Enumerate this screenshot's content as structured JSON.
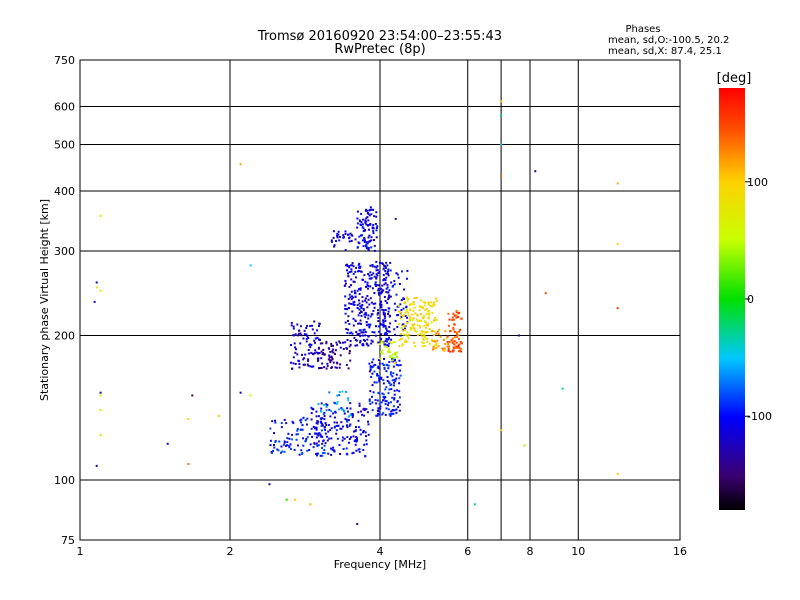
{
  "chart_data": {
    "type": "scatter",
    "title": "Tromsø 20160920 23:54:00–23:55:43",
    "subtitle": "RwPretec (8p)",
    "xlabel": "Frequency [MHz]",
    "ylabel": "Stationary phase Virtual Height [km]",
    "x_scale": "log",
    "y_scale": "log",
    "xlim": [
      1,
      16
    ],
    "ylim": [
      75,
      750
    ],
    "x_ticks": [
      1,
      2,
      4,
      6,
      8,
      10,
      16
    ],
    "y_ticks": [
      75,
      100,
      200,
      300,
      400,
      500,
      600,
      750
    ],
    "x_grid": [
      2,
      4,
      6,
      7,
      8,
      10
    ],
    "y_grid": [
      100,
      200,
      300,
      400,
      500,
      600
    ],
    "grid": true,
    "legend": {
      "title": "Phases",
      "line1": "mean, sd,O:-100.5, 20.2",
      "line2": "mean, sd,X:  87.4, 25.1",
      "placement": "top-right"
    },
    "colorbar": {
      "label": "[deg]",
      "min": -180,
      "max": 180,
      "ticks": [
        100,
        0,
        -100
      ],
      "placement": "right"
    },
    "clusters": [
      {
        "f_min": 2.65,
        "f_max": 3.05,
        "h_min": 170,
        "h_max": 215,
        "count": 90,
        "phase": -115
      },
      {
        "f_min": 3.0,
        "f_max": 3.5,
        "h_min": 170,
        "h_max": 195,
        "count": 70,
        "phase": -135
      },
      {
        "f_min": 3.4,
        "f_max": 4.2,
        "h_min": 190,
        "h_max": 285,
        "count": 320,
        "phase": -112
      },
      {
        "f_min": 3.6,
        "f_max": 3.95,
        "h_min": 300,
        "h_max": 370,
        "count": 90,
        "phase": -110
      },
      {
        "f_min": 3.2,
        "f_max": 3.6,
        "h_min": 300,
        "h_max": 330,
        "count": 30,
        "phase": -115
      },
      {
        "f_min": 4.0,
        "f_max": 4.55,
        "h_min": 195,
        "h_max": 275,
        "count": 70,
        "phase": -108
      },
      {
        "f_min": 2.4,
        "f_max": 3.1,
        "h_min": 112,
        "h_max": 135,
        "count": 100,
        "phase": -95
      },
      {
        "f_min": 2.9,
        "f_max": 3.8,
        "h_min": 112,
        "h_max": 145,
        "count": 170,
        "phase": -110
      },
      {
        "f_min": 3.8,
        "f_max": 4.4,
        "h_min": 135,
        "h_max": 180,
        "count": 150,
        "phase": -100
      },
      {
        "f_min": 3.0,
        "f_max": 3.5,
        "h_min": 135,
        "h_max": 155,
        "count": 25,
        "phase": -60
      },
      {
        "f_min": 4.0,
        "f_max": 4.35,
        "h_min": 175,
        "h_max": 195,
        "count": 30,
        "phase": 55
      },
      {
        "f_min": 4.35,
        "f_max": 5.2,
        "h_min": 190,
        "h_max": 240,
        "count": 160,
        "phase": 88
      },
      {
        "f_min": 5.05,
        "f_max": 5.5,
        "h_min": 185,
        "h_max": 210,
        "count": 25,
        "phase": 120
      },
      {
        "f_min": 5.45,
        "f_max": 5.85,
        "h_min": 185,
        "h_max": 225,
        "count": 70,
        "phase": 145
      }
    ],
    "points": [
      {
        "f": 1.1,
        "h": 355,
        "phase": 95
      },
      {
        "f": 1.08,
        "h": 252,
        "phase": 90
      },
      {
        "f": 1.1,
        "h": 248,
        "phase": 80
      },
      {
        "f": 1.07,
        "h": 235,
        "phase": -110
      },
      {
        "f": 1.08,
        "h": 258,
        "phase": -105
      },
      {
        "f": 1.1,
        "h": 150,
        "phase": 60
      },
      {
        "f": 1.1,
        "h": 140,
        "phase": 80
      },
      {
        "f": 1.1,
        "h": 124,
        "phase": 95
      },
      {
        "f": 1.08,
        "h": 107,
        "phase": -120
      },
      {
        "f": 1.1,
        "h": 152,
        "phase": -130
      },
      {
        "f": 1.5,
        "h": 119,
        "phase": -130
      },
      {
        "f": 1.65,
        "h": 134,
        "phase": 95
      },
      {
        "f": 1.65,
        "h": 108,
        "phase": 130
      },
      {
        "f": 1.68,
        "h": 150,
        "phase": -150
      },
      {
        "f": 1.9,
        "h": 136,
        "phase": 100
      },
      {
        "f": 2.1,
        "h": 455,
        "phase": 115
      },
      {
        "f": 2.1,
        "h": 152,
        "phase": -110
      },
      {
        "f": 2.2,
        "h": 280,
        "phase": -50
      },
      {
        "f": 2.2,
        "h": 150,
        "phase": 50
      },
      {
        "f": 2.4,
        "h": 98,
        "phase": -130
      },
      {
        "f": 2.6,
        "h": 91,
        "phase": 10
      },
      {
        "f": 2.7,
        "h": 91,
        "phase": 100
      },
      {
        "f": 2.9,
        "h": 89,
        "phase": 110
      },
      {
        "f": 3.6,
        "h": 81,
        "phase": -150
      },
      {
        "f": 4.3,
        "h": 350,
        "phase": -140
      },
      {
        "f": 6.2,
        "h": 89,
        "phase": -40
      },
      {
        "f": 7.0,
        "h": 615,
        "phase": 105
      },
      {
        "f": 7.0,
        "h": 575,
        "phase": -30
      },
      {
        "f": 7.0,
        "h": 500,
        "phase": -50
      },
      {
        "f": 7.0,
        "h": 430,
        "phase": 140
      },
      {
        "f": 7.0,
        "h": 127,
        "phase": 100
      },
      {
        "f": 7.6,
        "h": 200,
        "phase": -140
      },
      {
        "f": 7.8,
        "h": 118,
        "phase": 40
      },
      {
        "f": 8.2,
        "h": 440,
        "phase": -150
      },
      {
        "f": 8.6,
        "h": 245,
        "phase": 150
      },
      {
        "f": 9.3,
        "h": 155,
        "phase": -40
      },
      {
        "f": 12.0,
        "h": 415,
        "phase": 110
      },
      {
        "f": 12.0,
        "h": 310,
        "phase": 95
      },
      {
        "f": 12.0,
        "h": 228,
        "phase": 160
      },
      {
        "f": 12.0,
        "h": 103,
        "phase": 100
      }
    ]
  }
}
